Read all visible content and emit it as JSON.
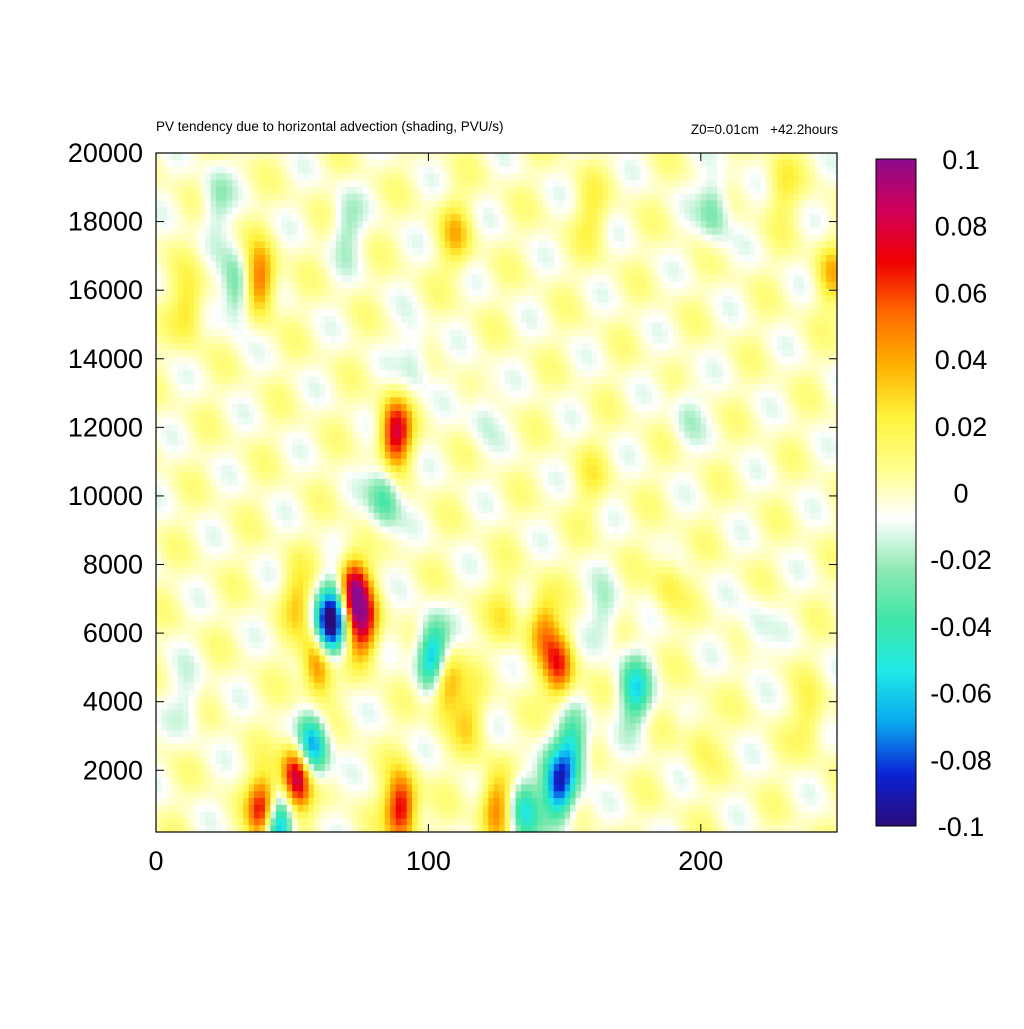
{
  "chart_data": {
    "type": "heatmap",
    "title": "PV tendency due to horizontal advection (shading, PVU/s)",
    "subtitle": "Z0=0.01cm   +42.2hours",
    "xlabel": "",
    "ylabel": "",
    "xlim": [
      0,
      250
    ],
    "ylim": [
      200,
      20000
    ],
    "x_ticks": [
      0,
      100,
      200
    ],
    "x_tick_labels": [
      "0",
      "100",
      "200"
    ],
    "y_ticks": [
      2000,
      4000,
      6000,
      8000,
      10000,
      12000,
      14000,
      16000,
      18000,
      20000
    ],
    "y_tick_labels": [
      "2000",
      "4000",
      "6000",
      "8000",
      "10000",
      "12000",
      "14000",
      "16000",
      "18000",
      "20000"
    ],
    "grid": false,
    "colorbar": {
      "range": [
        -0.1,
        0.1
      ],
      "ticks": [
        -0.1,
        -0.08,
        -0.06,
        -0.04,
        -0.02,
        0,
        0.02,
        0.04,
        0.06,
        0.08,
        0.1
      ],
      "tick_labels": [
        "-0.1",
        "-0.08",
        "-0.06",
        "-0.04",
        "-0.02",
        "0",
        "0.02",
        "0.04",
        "0.06",
        "0.08",
        "0.1"
      ],
      "colors": [
        "#2a0b7a",
        "#0b22d4",
        "#0aa6f0",
        "#1ee8e8",
        "#3ee6a6",
        "#8fe9b4",
        "#ffffff",
        "#ffff8a",
        "#fff23a",
        "#ffb000",
        "#ff6a00",
        "#f00000",
        "#d0005a",
        "#8c0a8c"
      ]
    },
    "features": [
      {
        "x": 40,
        "y": 800,
        "value": 0.1
      },
      {
        "x": 44,
        "y": 400,
        "value": -0.1
      },
      {
        "x": 52,
        "y": 1800,
        "value": 0.1
      },
      {
        "x": 57,
        "y": 2600,
        "value": -0.08
      },
      {
        "x": 60,
        "y": 5200,
        "value": 0.08
      },
      {
        "x": 63,
        "y": 6000,
        "value": -0.1
      },
      {
        "x": 67,
        "y": 6800,
        "value": -0.06
      },
      {
        "x": 72,
        "y": 7200,
        "value": 0.1
      },
      {
        "x": 76,
        "y": 6200,
        "value": 0.07
      },
      {
        "x": 88,
        "y": 11800,
        "value": 0.08
      },
      {
        "x": 90,
        "y": 900,
        "value": 0.08
      },
      {
        "x": 102,
        "y": 5300,
        "value": -0.08
      },
      {
        "x": 106,
        "y": 4600,
        "value": 0.06
      },
      {
        "x": 125,
        "y": 1000,
        "value": 0.05
      },
      {
        "x": 135,
        "y": 900,
        "value": -0.05
      },
      {
        "x": 148,
        "y": 5000,
        "value": 0.06
      },
      {
        "x": 148,
        "y": 1500,
        "value": -0.08
      },
      {
        "x": 153,
        "y": 2700,
        "value": -0.05
      },
      {
        "x": 176,
        "y": 4300,
        "value": -0.05
      },
      {
        "x": 38,
        "y": 16300,
        "value": 0.06
      },
      {
        "x": 30,
        "y": 16000,
        "value": -0.04
      },
      {
        "x": 12,
        "y": 15500,
        "value": 0.03
      },
      {
        "x": 84,
        "y": 10000,
        "value": -0.04
      },
      {
        "x": 52,
        "y": 7000,
        "value": 0.03
      },
      {
        "x": 142,
        "y": 6200,
        "value": 0.04
      },
      {
        "x": 165,
        "y": 6500,
        "value": -0.02
      },
      {
        "x": 188,
        "y": 7400,
        "value": 0.02
      },
      {
        "x": 205,
        "y": 18400,
        "value": -0.03
      },
      {
        "x": 248,
        "y": 16500,
        "value": 0.03
      },
      {
        "x": 110,
        "y": 17600,
        "value": 0.03
      },
      {
        "x": 70,
        "y": 17800,
        "value": -0.02
      },
      {
        "x": 160,
        "y": 18200,
        "value": 0.02
      },
      {
        "x": 230,
        "y": 19000,
        "value": 0.02
      },
      {
        "x": 22,
        "y": 18600,
        "value": -0.02
      },
      {
        "x": 95,
        "y": 14000,
        "value": -0.02
      },
      {
        "x": 120,
        "y": 12500,
        "value": -0.015
      },
      {
        "x": 115,
        "y": 3500,
        "value": 0.025
      },
      {
        "x": 128,
        "y": 6500,
        "value": 0.02
      },
      {
        "x": 200,
        "y": 3000,
        "value": 0.015
      },
      {
        "x": 220,
        "y": 6000,
        "value": -0.015
      },
      {
        "x": 240,
        "y": 3500,
        "value": 0.02
      },
      {
        "x": 12,
        "y": 4000,
        "value": -0.015
      },
      {
        "x": 160,
        "y": 10500,
        "value": 0.015
      },
      {
        "x": 195,
        "y": 12500,
        "value": -0.015
      }
    ]
  }
}
